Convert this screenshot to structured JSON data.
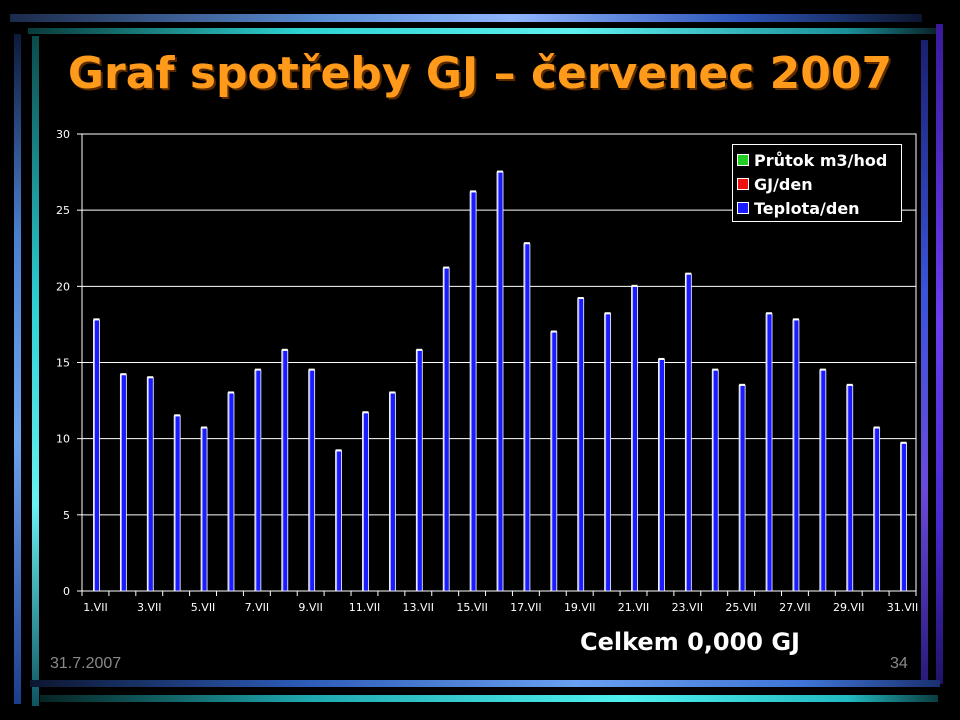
{
  "slide": {
    "title": "Graf spotřeby GJ – červenec 2007",
    "total": "Celkem  0,000 GJ",
    "date": "31.7.2007",
    "page_number": "34"
  },
  "colors": {
    "title": "#ff9a1a",
    "bar": "#1b1bff",
    "background": "#000000"
  },
  "chart_data": {
    "type": "bar",
    "categories": [
      "1.VII",
      "2.VII",
      "3.VII",
      "4.VII",
      "5.VII",
      "6.VII",
      "7.VII",
      "8.VII",
      "9.VII",
      "10.VII",
      "11.VII",
      "12.VII",
      "13.VII",
      "14.VII",
      "15.VII",
      "16.VII",
      "17.VII",
      "18.VII",
      "19.VII",
      "20.VII",
      "21.VII",
      "22.VII",
      "23.VII",
      "24.VII",
      "25.VII",
      "26.VII",
      "27.VII",
      "28.VII",
      "29.VII",
      "30.VII",
      "31.VII"
    ],
    "tick_labels": [
      "1.VII",
      "3.VII",
      "5.VII",
      "7.VII",
      "9.VII",
      "11.VII",
      "13.VII",
      "15.VII",
      "17.VII",
      "19.VII",
      "21.VII",
      "23.VII",
      "25.VII",
      "27.VII",
      "29.VII",
      "31.VII"
    ],
    "series": [
      {
        "name": "Průtok m3/hod",
        "color": "#22cc22",
        "values": [
          0,
          0,
          0,
          0,
          0,
          0,
          0,
          0,
          0,
          0,
          0,
          0,
          0,
          0,
          0,
          0,
          0,
          0,
          0,
          0,
          0,
          0,
          0,
          0,
          0,
          0,
          0,
          0,
          0,
          0,
          0
        ]
      },
      {
        "name": "GJ/den",
        "color": "#ee1111",
        "values": [
          0,
          0,
          0,
          0,
          0,
          0,
          0,
          0,
          0,
          0,
          0,
          0,
          0,
          0,
          0,
          0,
          0,
          0,
          0,
          0,
          0,
          0,
          0,
          0,
          0,
          0,
          0,
          0,
          0,
          0,
          0
        ]
      },
      {
        "name": "Teplota/den",
        "color": "#1b1bff",
        "values": [
          17.8,
          14.2,
          14.0,
          11.5,
          10.7,
          13.0,
          14.5,
          15.8,
          14.5,
          9.2,
          11.7,
          13.0,
          15.8,
          21.2,
          26.2,
          27.5,
          22.8,
          17.0,
          19.2,
          18.2,
          20.0,
          15.2,
          20.8,
          14.5,
          13.5,
          18.2,
          17.8,
          14.5,
          13.5,
          10.7,
          9.7
        ]
      }
    ],
    "yticks": [
      "0",
      "5",
      "10",
      "15",
      "20",
      "25",
      "30"
    ],
    "ylim": [
      0,
      30
    ],
    "grid": true,
    "legend_position": "top-right"
  }
}
